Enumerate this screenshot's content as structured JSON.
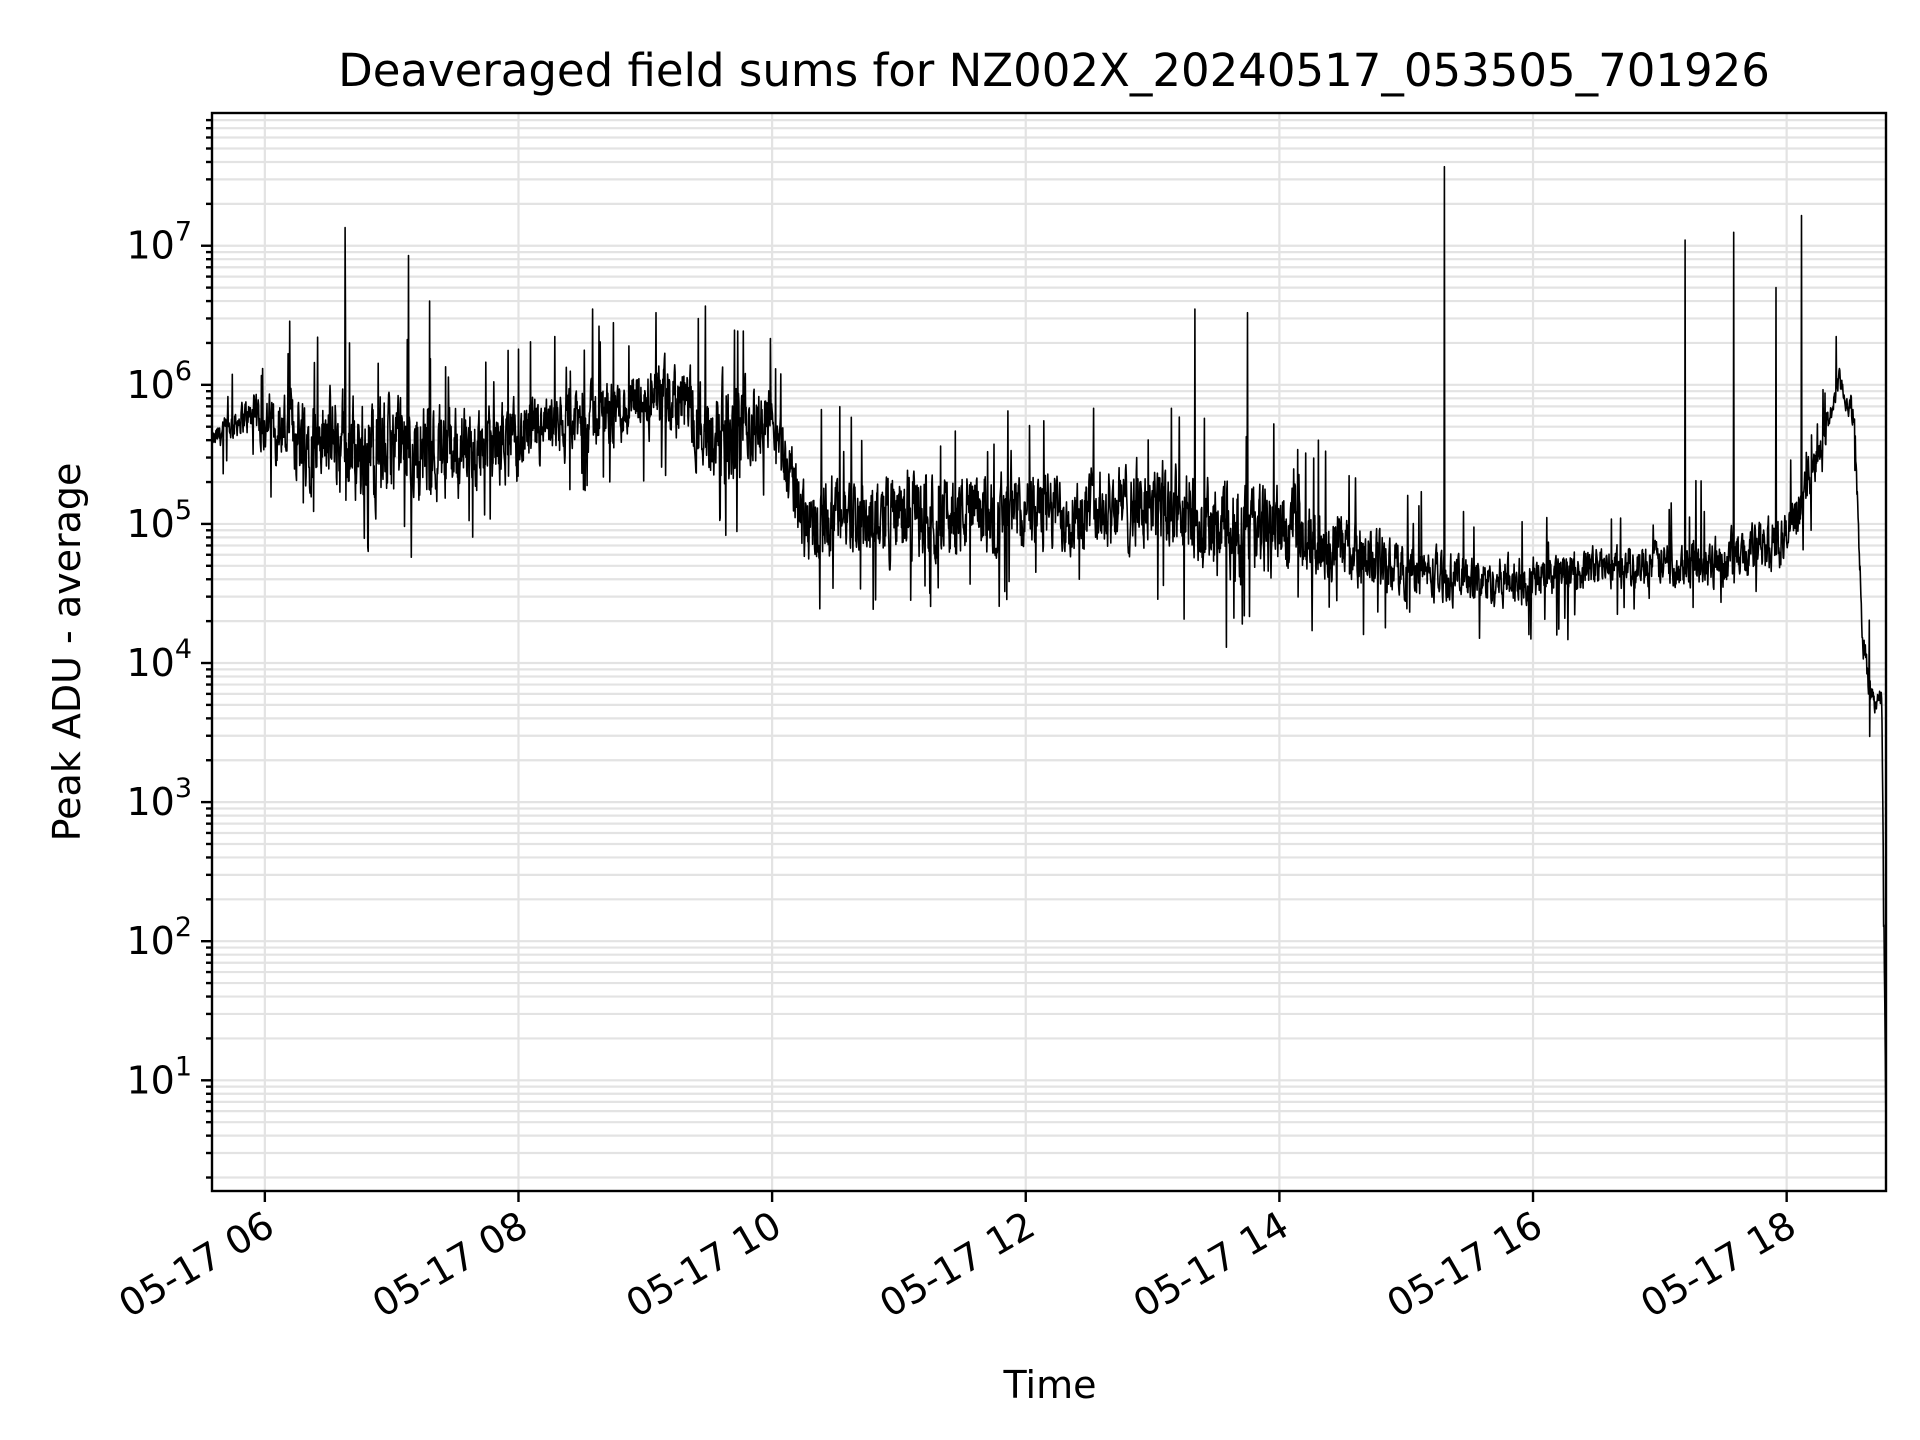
{
  "chart_data": {
    "type": "line",
    "title": "Deaveraged field sums for NZ002X_20240517_053505_701926",
    "xlabel": "Time",
    "ylabel": "Peak ADU - average",
    "yscale": "log",
    "grid": true,
    "grid_minor": true,
    "xlim": [
      "2024-05-17 05:35",
      "2024-05-17 18:47"
    ],
    "ylim": [
      1.6,
      90000000
    ],
    "x_ticks": [
      {
        "time": "2024-05-17 06:00",
        "label": "05-17 06"
      },
      {
        "time": "2024-05-17 08:00",
        "label": "05-17 08"
      },
      {
        "time": "2024-05-17 10:00",
        "label": "05-17 10"
      },
      {
        "time": "2024-05-17 12:00",
        "label": "05-17 12"
      },
      {
        "time": "2024-05-17 14:00",
        "label": "05-17 14"
      },
      {
        "time": "2024-05-17 16:00",
        "label": "05-17 16"
      },
      {
        "time": "2024-05-17 18:00",
        "label": "05-17 18"
      }
    ],
    "y_ticks": [
      {
        "value": 10,
        "base": "10",
        "exp": "1"
      },
      {
        "value": 100,
        "base": "10",
        "exp": "2"
      },
      {
        "value": 1000,
        "base": "10",
        "exp": "3"
      },
      {
        "value": 10000,
        "base": "10",
        "exp": "4"
      },
      {
        "value": 100000,
        "base": "10",
        "exp": "5"
      },
      {
        "value": 1000000,
        "base": "10",
        "exp": "6"
      },
      {
        "value": 10000000,
        "base": "10",
        "exp": "7"
      }
    ],
    "series": [
      {
        "color": "#000000",
        "baseline": [
          {
            "time": "2024-05-17 05:35",
            "low": 300000,
            "high": 500000
          },
          {
            "time": "2024-05-17 05:50",
            "low": 400000,
            "high": 900000
          },
          {
            "time": "2024-05-17 06:15",
            "low": 150000,
            "high": 1400000
          },
          {
            "time": "2024-05-17 06:45",
            "low": 90000,
            "high": 1300000
          },
          {
            "time": "2024-05-17 07:15",
            "low": 100000,
            "high": 1100000
          },
          {
            "time": "2024-05-17 07:45",
            "low": 120000,
            "high": 1000000
          },
          {
            "time": "2024-05-17 08:15",
            "low": 200000,
            "high": 1000000
          },
          {
            "time": "2024-05-17 08:45",
            "low": 300000,
            "high": 1500000
          },
          {
            "time": "2024-05-17 09:15",
            "low": 300000,
            "high": 2000000
          },
          {
            "time": "2024-05-17 09:40",
            "low": 100000,
            "high": 1500000
          },
          {
            "time": "2024-05-17 10:00",
            "low": 300000,
            "high": 1200000
          },
          {
            "time": "2024-05-17 10:15",
            "low": 40000,
            "high": 300000
          },
          {
            "time": "2024-05-17 11:00",
            "low": 40000,
            "high": 350000
          },
          {
            "time": "2024-05-17 12:00",
            "low": 45000,
            "high": 300000
          },
          {
            "time": "2024-05-17 13:00",
            "low": 50000,
            "high": 400000
          },
          {
            "time": "2024-05-17 13:30",
            "low": 25000,
            "high": 300000
          },
          {
            "time": "2024-05-17 14:00",
            "low": 30000,
            "high": 250000
          },
          {
            "time": "2024-05-17 14:30",
            "low": 30000,
            "high": 150000
          },
          {
            "time": "2024-05-17 15:00",
            "low": 25000,
            "high": 90000
          },
          {
            "time": "2024-05-17 15:30",
            "low": 22000,
            "high": 70000
          },
          {
            "time": "2024-05-17 16:00",
            "low": 22000,
            "high": 70000
          },
          {
            "time": "2024-05-17 16:30",
            "low": 30000,
            "high": 80000
          },
          {
            "time": "2024-05-17 17:00",
            "low": 30000,
            "high": 90000
          },
          {
            "time": "2024-05-17 17:30",
            "low": 30000,
            "high": 100000
          },
          {
            "time": "2024-05-17 18:00",
            "low": 40000,
            "high": 150000
          },
          {
            "time": "2024-05-17 18:15",
            "low": 200000,
            "high": 500000
          },
          {
            "time": "2024-05-17 18:25",
            "low": 800000,
            "high": 1400000
          },
          {
            "time": "2024-05-17 18:32",
            "low": 400000,
            "high": 800000
          },
          {
            "time": "2024-05-17 18:36",
            "low": 10000,
            "high": 20000
          },
          {
            "time": "2024-05-17 18:40",
            "low": 4000,
            "high": 8000
          },
          {
            "time": "2024-05-17 18:45",
            "low": 4000,
            "high": 7000
          },
          {
            "time": "2024-05-17 18:47",
            "low": 3,
            "high": 6
          }
        ],
        "spikes": [
          {
            "time": "2024-05-17 06:38",
            "value": 13500000
          },
          {
            "time": "2024-05-17 07:08",
            "value": 8500000
          },
          {
            "time": "2024-05-17 07:18",
            "value": 4000000
          },
          {
            "time": "2024-05-17 06:25",
            "value": 2200000
          },
          {
            "time": "2024-05-17 08:35",
            "value": 3500000
          },
          {
            "time": "2024-05-17 09:05",
            "value": 3300000
          },
          {
            "time": "2024-05-17 09:25",
            "value": 3000000
          },
          {
            "time": "2024-05-17 13:20",
            "value": 3500000
          },
          {
            "time": "2024-05-17 13:45",
            "value": 3300000
          },
          {
            "time": "2024-05-17 15:18",
            "value": 37000000
          },
          {
            "time": "2024-05-17 17:12",
            "value": 11000000
          },
          {
            "time": "2024-05-17 17:35",
            "value": 12500000
          },
          {
            "time": "2024-05-17 17:55",
            "value": 5000000
          },
          {
            "time": "2024-05-17 18:07",
            "value": 16500000
          },
          {
            "time": "2024-05-17 13:35",
            "value": 13000
          },
          {
            "time": "2024-05-17 15:58",
            "value": 16000
          }
        ]
      }
    ]
  }
}
